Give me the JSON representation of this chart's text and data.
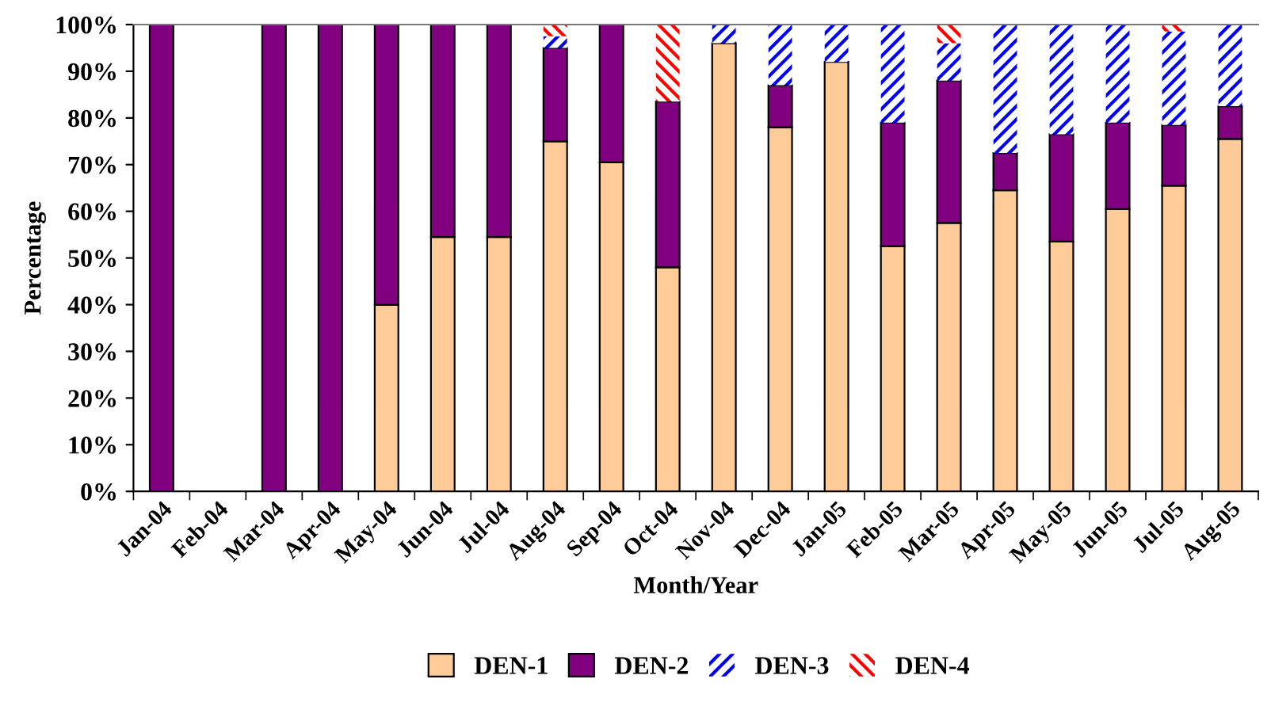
{
  "chart_data": {
    "type": "bar",
    "stacked": true,
    "xlabel": "Month/Year",
    "ylabel": "Percentage",
    "categories": [
      "Jan-04",
      "Feb-04",
      "Mar-04",
      "Apr-04",
      "May-04",
      "Jun-04",
      "Jul-04",
      "Aug-04",
      "Sep-04",
      "Oct-04",
      "Nov-04",
      "Dec-04",
      "Jan-05",
      "Feb-05",
      "Mar-05",
      "Apr-05",
      "May-05",
      "Jun-05",
      "Jul-05",
      "Aug-05"
    ],
    "series": [
      {
        "name": "DEN-1",
        "color": "#ffcc99",
        "values": [
          0,
          0,
          0,
          0,
          40,
          54.5,
          54.5,
          75,
          70.5,
          48,
          96,
          78,
          92,
          52.5,
          57.5,
          64.5,
          53.5,
          60.5,
          65.5,
          75.5
        ]
      },
      {
        "name": "DEN-2",
        "color": "#800080",
        "values": [
          100,
          0,
          100,
          100,
          60,
          45.5,
          45.5,
          20,
          29.5,
          35.5,
          0,
          9,
          0,
          26.5,
          30.5,
          8,
          23,
          18.5,
          13,
          7
        ]
      },
      {
        "name": "DEN-3",
        "color": "#0000ff",
        "values": [
          0,
          0,
          0,
          0,
          0,
          0,
          0,
          2.5,
          0,
          0,
          4,
          13,
          8,
          21,
          8,
          27.5,
          23.5,
          21,
          20,
          17.5
        ]
      },
      {
        "name": "DEN-4",
        "color": "#ff0000",
        "values": [
          0,
          0,
          0,
          0,
          0,
          0,
          0,
          2.5,
          0,
          16.5,
          0,
          0,
          0,
          0,
          4,
          0,
          0,
          0,
          1.5,
          0
        ]
      }
    ],
    "ylim": [
      0,
      100
    ],
    "yticks": [
      {
        "value": 0,
        "label": "0%"
      },
      {
        "value": 10,
        "label": "10%"
      },
      {
        "value": 20,
        "label": "20%"
      },
      {
        "value": 30,
        "label": "30%"
      },
      {
        "value": 40,
        "label": "40%"
      },
      {
        "value": 50,
        "label": "50%"
      },
      {
        "value": 60,
        "label": "60%"
      },
      {
        "value": 70,
        "label": "70%"
      },
      {
        "value": 80,
        "label": "80%"
      },
      {
        "value": 90,
        "label": "90%"
      },
      {
        "value": 100,
        "label": "100%"
      }
    ],
    "grid": false,
    "legend": "bottom"
  }
}
